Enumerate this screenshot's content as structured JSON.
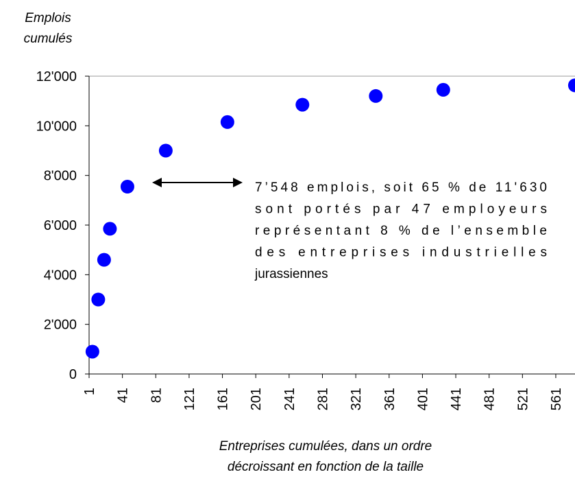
{
  "chart_data": {
    "type": "scatter",
    "y_axis_title": [
      "Emplois",
      "cumulés"
    ],
    "x_axis_title": [
      "Entreprises cumulées, dans un ordre",
      "décroissant en fonction de la taille"
    ],
    "annotation": [
      "7’548 emplois, soit 65 % de 11'630",
      "sont portés par 47 employeurs",
      "représentant 8 % de l’ensemble",
      "des entreprises industrielles",
      "jurassiennes"
    ],
    "color": "#0000ff",
    "x": [
      5,
      12,
      19,
      26,
      47,
      93,
      167,
      257,
      345,
      426,
      584
    ],
    "values": [
      900,
      3000,
      4600,
      5850,
      7548,
      9000,
      10150,
      10850,
      11200,
      11450,
      11630
    ],
    "xlim": [
      1,
      584
    ],
    "ylim": [
      0,
      12000
    ],
    "xticks": [
      1,
      41,
      81,
      121,
      161,
      201,
      241,
      281,
      321,
      361,
      401,
      441,
      481,
      521,
      561
    ],
    "yticks": [
      0,
      {
        "value": 2000,
        "label": "2'000"
      },
      {
        "value": 4000,
        "label": "4'000"
      },
      {
        "value": 6000,
        "label": "6'000"
      },
      {
        "value": 8000,
        "label": "8'000"
      },
      {
        "value": 10000,
        "label": "10'000"
      },
      {
        "value": 12000,
        "label": "12'000"
      }
    ]
  }
}
